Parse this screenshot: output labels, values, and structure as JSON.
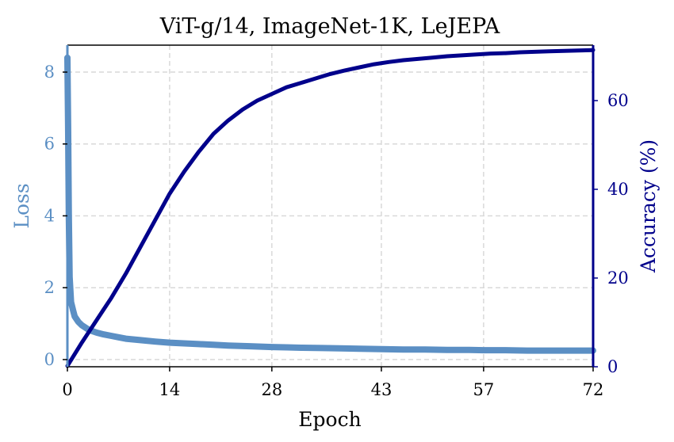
{
  "chart_data": {
    "type": "line",
    "title": "ViT-g/14, ImageNet-1K, LeJEPA",
    "xlabel": "Epoch",
    "ylabel_left": "Loss",
    "ylabel_right": "Accuracy (%)",
    "xlim": [
      0,
      72
    ],
    "ylim_left": [
      -0.2,
      8.75
    ],
    "ylim_right": [
      0,
      72.5
    ],
    "x_ticks": [
      "0",
      "14",
      "28",
      "43",
      "57",
      "72"
    ],
    "x_tick_values": [
      0,
      14,
      28,
      43,
      57,
      72
    ],
    "y_left_ticks": [
      "0",
      "2",
      "4",
      "6",
      "8"
    ],
    "y_left_tick_values": [
      0,
      2,
      4,
      6,
      8
    ],
    "y_right_ticks": [
      "0",
      "20",
      "40",
      "60"
    ],
    "y_right_tick_values": [
      0,
      20,
      40,
      60
    ],
    "grid": true,
    "colors": {
      "loss": "#5b8fc4",
      "accuracy": "#00008b",
      "loss_label": "#5b8fc4",
      "accuracy_label": "#00008b"
    },
    "series": [
      {
        "name": "Loss",
        "axis": "left",
        "x": [
          0,
          0.1,
          0.2,
          0.3,
          0.5,
          0.8,
          1,
          1.5,
          2,
          3,
          4,
          5,
          6,
          7,
          8,
          10,
          12,
          14,
          16,
          18,
          20,
          22,
          25,
          28,
          30,
          32,
          35,
          38,
          40,
          43,
          46,
          49,
          52,
          55,
          57,
          60,
          63,
          66,
          69,
          72
        ],
        "values": [
          8.4,
          6.5,
          4.0,
          2.3,
          1.6,
          1.35,
          1.2,
          1.05,
          0.95,
          0.82,
          0.75,
          0.7,
          0.66,
          0.62,
          0.58,
          0.54,
          0.5,
          0.47,
          0.45,
          0.43,
          0.41,
          0.39,
          0.37,
          0.35,
          0.34,
          0.33,
          0.32,
          0.31,
          0.3,
          0.29,
          0.28,
          0.28,
          0.27,
          0.27,
          0.26,
          0.26,
          0.25,
          0.25,
          0.25,
          0.25
        ]
      },
      {
        "name": "Accuracy (%)",
        "axis": "right",
        "x": [
          0,
          2,
          4,
          6,
          8,
          10,
          12,
          14,
          16,
          18,
          20,
          22,
          24,
          26,
          28,
          30,
          32,
          34,
          36,
          38,
          40,
          42,
          44,
          46,
          48,
          50,
          52,
          54,
          56,
          58,
          60,
          62,
          64,
          66,
          68,
          70,
          72
        ],
        "values": [
          0.2,
          5.5,
          10.5,
          15.5,
          21,
          27,
          33,
          39,
          44,
          48.5,
          52.5,
          55.5,
          58,
          60,
          61.5,
          63,
          64,
          65,
          66,
          66.8,
          67.5,
          68.2,
          68.7,
          69.1,
          69.4,
          69.7,
          70,
          70.2,
          70.4,
          70.6,
          70.7,
          70.9,
          71,
          71.1,
          71.2,
          71.3,
          71.4
        ]
      }
    ]
  }
}
